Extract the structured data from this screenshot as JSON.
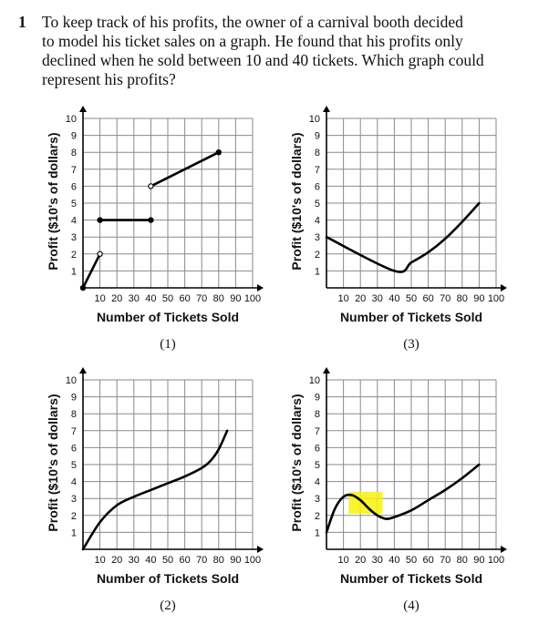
{
  "question": {
    "number": "1",
    "lines": [
      "To keep track of his profits, the owner of a carnival booth decided",
      "to model his ticket sales on a graph. He found that his profits only",
      "declined when he sold between 10 and 40 tickets. Which graph could",
      "represent his profits?"
    ]
  },
  "highlight_color": "#f7f20a",
  "chart_data": [
    {
      "type": "line",
      "caption": "(1)",
      "xlabel": "Number of Tickets Sold",
      "ylabel": "Profit ($10's of dollars)",
      "xlim": [
        0,
        100
      ],
      "ylim": [
        0,
        10
      ],
      "xticks": [
        10,
        20,
        30,
        40,
        50,
        60,
        70,
        80,
        90,
        100
      ],
      "yticks": [
        1,
        2,
        3,
        4,
        5,
        6,
        7,
        8,
        9,
        10
      ],
      "segments": [
        {
          "points": [
            [
              0,
              0
            ],
            [
              10,
              2
            ]
          ],
          "start": "closed",
          "end": "open"
        },
        {
          "points": [
            [
              10,
              4
            ],
            [
              40,
              4
            ]
          ],
          "start": "closed",
          "end": "closed"
        },
        {
          "points": [
            [
              40,
              6
            ],
            [
              80,
              8
            ]
          ],
          "start": "open",
          "end": "closed"
        }
      ]
    },
    {
      "type": "line",
      "caption": "(3)",
      "xlabel": "Number of Tickets Sold",
      "ylabel": "Profit ($10's of dollars)",
      "xlim": [
        0,
        100
      ],
      "ylim": [
        0,
        10
      ],
      "xticks": [
        10,
        20,
        30,
        40,
        50,
        60,
        70,
        80,
        90,
        100
      ],
      "yticks": [
        1,
        2,
        3,
        4,
        5,
        6,
        7,
        8,
        9,
        10
      ],
      "segments": [
        {
          "points": [
            [
              0,
              3
            ],
            [
              40,
              1
            ],
            [
              50,
              1.5
            ],
            [
              60,
              2.1
            ],
            [
              70,
              2.9
            ],
            [
              80,
              3.9
            ],
            [
              90,
              5
            ]
          ]
        }
      ]
    },
    {
      "type": "line",
      "caption": "(2)",
      "xlabel": "Number of Tickets Sold",
      "ylabel": "Profit ($10's of dollars)",
      "xlim": [
        0,
        100
      ],
      "ylim": [
        0,
        10
      ],
      "xticks": [
        10,
        20,
        30,
        40,
        50,
        60,
        70,
        80,
        90,
        100
      ],
      "yticks": [
        1,
        2,
        3,
        4,
        5,
        6,
        7,
        8,
        9,
        10
      ],
      "segments": [
        {
          "points": [
            [
              0,
              0
            ],
            [
              10,
              1.6
            ],
            [
              20,
              2.6
            ],
            [
              30,
              3.1
            ],
            [
              40,
              3.5
            ],
            [
              50,
              3.9
            ],
            [
              60,
              4.3
            ],
            [
              70,
              4.8
            ],
            [
              75,
              5.2
            ],
            [
              80,
              5.9
            ],
            [
              85,
              7
            ]
          ]
        }
      ]
    },
    {
      "type": "line",
      "caption": "(4)",
      "xlabel": "Number of Tickets Sold",
      "ylabel": "Profit ($10's of dollars)",
      "xlim": [
        0,
        100
      ],
      "ylim": [
        0,
        10
      ],
      "xticks": [
        10,
        20,
        30,
        40,
        50,
        60,
        70,
        80,
        90,
        100
      ],
      "yticks": [
        1,
        2,
        3,
        4,
        5,
        6,
        7,
        8,
        9,
        10
      ],
      "segments": [
        {
          "points": [
            [
              0,
              1
            ],
            [
              5,
              2.4
            ],
            [
              10,
              3.1
            ],
            [
              15,
              3.2
            ],
            [
              20,
              2.9
            ],
            [
              25,
              2.4
            ],
            [
              30,
              2
            ],
            [
              35,
              1.8
            ],
            [
              40,
              1.9
            ],
            [
              50,
              2.3
            ],
            [
              60,
              2.9
            ],
            [
              70,
              3.5
            ],
            [
              80,
              4.2
            ],
            [
              90,
              5
            ]
          ]
        }
      ],
      "highlight": {
        "x": [
          13,
          33
        ],
        "y": [
          2.1,
          3.4
        ]
      }
    }
  ]
}
